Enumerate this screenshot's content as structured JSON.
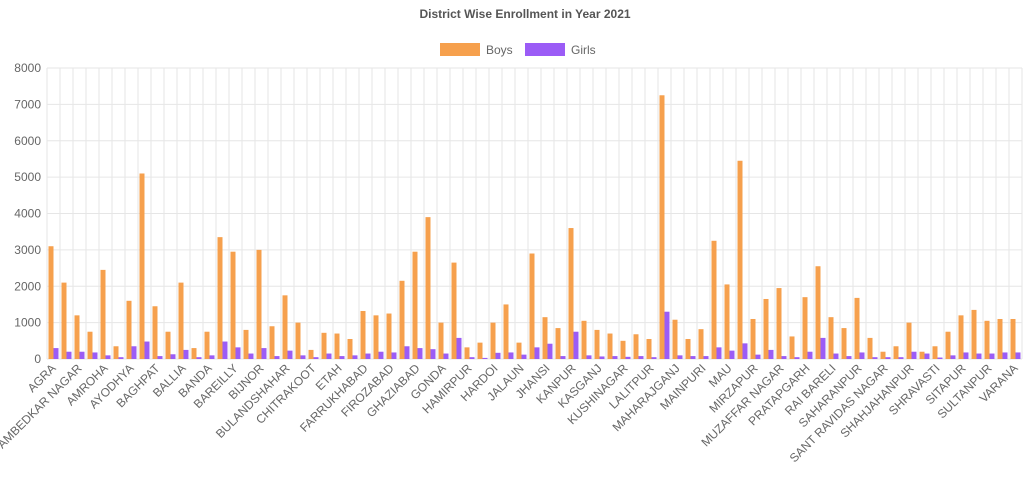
{
  "chart_data": {
    "type": "bar",
    "title": "District Wise Enrollment in Year 2021",
    "categories": [
      "AGRA",
      null,
      "AMBEDKAR NAGAR",
      null,
      "AMROHA",
      null,
      "AYODHYA",
      null,
      "BAGHPAT",
      null,
      "BALLIA",
      null,
      "BANDA",
      null,
      "BAREILLY",
      null,
      "BIJNOR",
      null,
      "BULANDSHAHAR",
      null,
      "CHITRAKOOT",
      null,
      "ETAH",
      null,
      "FARRUKHABAD",
      null,
      "FIROZABAD",
      null,
      "GHAZIABAD",
      null,
      "GONDA",
      null,
      "HAMIRPUR",
      null,
      "HARDOI",
      null,
      "JALAUN",
      null,
      "JHANSI",
      null,
      "KANPUR",
      null,
      "KASGANJ",
      null,
      "KUSHINAGAR",
      null,
      "LALITPUR",
      null,
      "MAHARAJGANJ",
      null,
      "MAINPURI",
      null,
      "MAU",
      null,
      "MIRZAPUR",
      null,
      "MUZAFFAR NAGAR",
      null,
      "PRATAPGARH",
      null,
      "RAI BARELI",
      null,
      "SAHARANPUR",
      null,
      "SANT RAVIDAS NAGAR",
      null,
      "SHAHJAHANPUR",
      null,
      "SHRAVASTI",
      null,
      "SITAPUR",
      null,
      "SULTANPUR",
      null,
      "VARANA"
    ],
    "series": [
      {
        "name": "Boys",
        "color": "#f6a04d",
        "values": [
          3100,
          2100,
          1200,
          750,
          2450,
          350,
          1600,
          5100,
          1450,
          750,
          2100,
          300,
          750,
          3350,
          2950,
          800,
          3000,
          900,
          1750,
          1000,
          250,
          720,
          700,
          550,
          1320,
          1200,
          1250,
          2150,
          2950,
          3900,
          1000,
          2650,
          320,
          450,
          1000,
          1500,
          450,
          2900,
          1150,
          850,
          3600,
          1050,
          800,
          700,
          500,
          680,
          550,
          7250,
          1080,
          550,
          820,
          3250,
          2050,
          5450,
          1100,
          1650,
          1950,
          620,
          1700,
          2550,
          1150,
          850,
          1680,
          580,
          200,
          350,
          1000,
          200,
          350,
          750,
          1200,
          1350,
          1050,
          1100,
          1100
        ]
      },
      {
        "name": "Girls",
        "color": "#9b5cf6",
        "values": [
          300,
          200,
          200,
          180,
          100,
          50,
          350,
          480,
          80,
          130,
          250,
          50,
          100,
          480,
          320,
          150,
          300,
          80,
          230,
          100,
          50,
          150,
          80,
          100,
          150,
          200,
          180,
          350,
          300,
          270,
          150,
          580,
          50,
          30,
          170,
          180,
          120,
          320,
          420,
          80,
          750,
          100,
          70,
          80,
          60,
          80,
          50,
          1300,
          100,
          80,
          80,
          320,
          230,
          430,
          120,
          250,
          80,
          50,
          200,
          580,
          150,
          80,
          180,
          50,
          50,
          50,
          200,
          150,
          40,
          100,
          180,
          150,
          150,
          180,
          180
        ]
      }
    ],
    "ylim": [
      0,
      8000
    ],
    "yticks": [
      0,
      1000,
      2000,
      3000,
      4000,
      5000,
      6000,
      7000,
      8000
    ],
    "grid": true,
    "legend": "top"
  }
}
